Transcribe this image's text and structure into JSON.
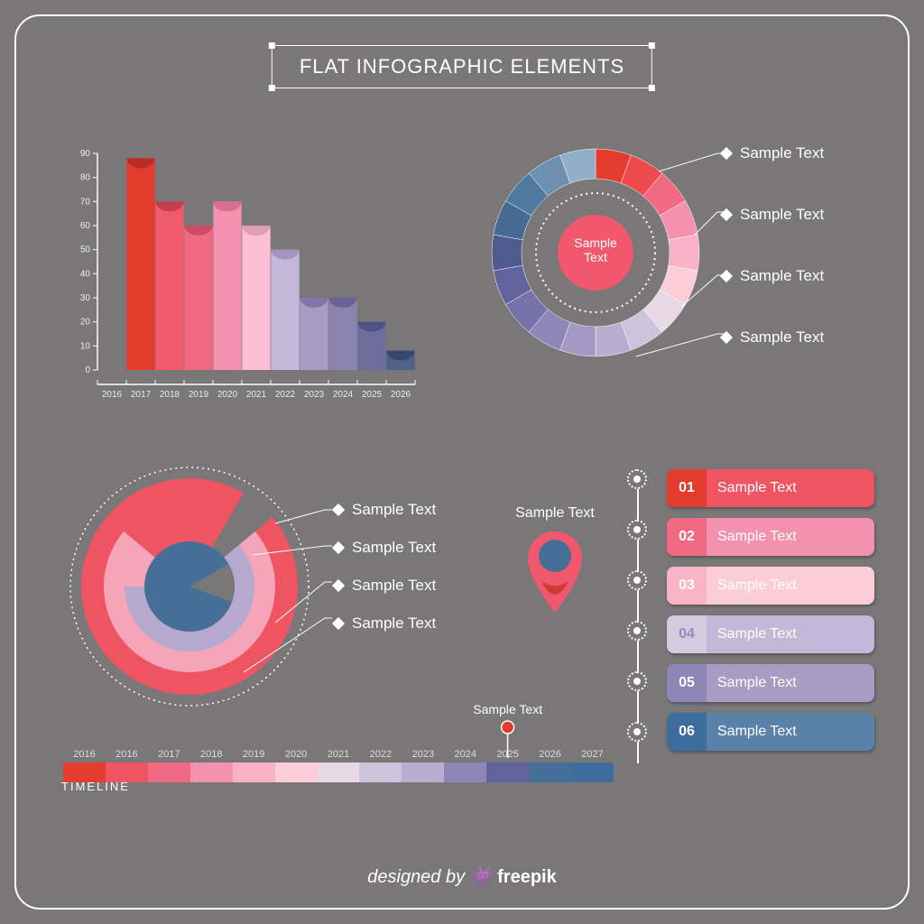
{
  "background_color": "#797777",
  "frame_color": "#ffffff",
  "title": "FLAT INFOGRAPHIC ELEMENTS",
  "title_fontsize": 22,
  "bar_chart": {
    "type": "bar",
    "x_labels": [
      "2016",
      "2017",
      "2018",
      "2019",
      "2020",
      "2021",
      "2022",
      "2023",
      "2024",
      "2025",
      "2026"
    ],
    "y_max": 90,
    "y_tick_step": 10,
    "label_fontsize": 10,
    "tick_color": "#ffffff",
    "text_color": "#eeeeee",
    "bars": [
      {
        "x": "2017",
        "value": 88,
        "fill": "#e33b2d",
        "top": "#b82c24"
      },
      {
        "x": "2018",
        "value": 70,
        "fill": "#ef5b6b",
        "top": "#c53e4f"
      },
      {
        "x": "2019",
        "value": 60,
        "fill": "#f06a84",
        "top": "#cc4c66"
      },
      {
        "x": "2020",
        "value": 70,
        "fill": "#f591b0",
        "top": "#d86f8e"
      },
      {
        "x": "2021",
        "value": 60,
        "fill": "#fac0d3",
        "top": "#e09cb3"
      },
      {
        "x": "2022",
        "value": 50,
        "fill": "#c4b7d7",
        "top": "#a593bf"
      },
      {
        "x": "2023",
        "value": 30,
        "fill": "#a79cc4",
        "top": "#8276a8"
      },
      {
        "x": "2024",
        "value": 30,
        "fill": "#8a83b0",
        "top": "#6a6494"
      },
      {
        "x": "2025",
        "value": 20,
        "fill": "#6d6da0",
        "top": "#505184"
      },
      {
        "x": "2026",
        "value": 8,
        "fill": "#4e6189",
        "top": "#36486d"
      }
    ]
  },
  "donut": {
    "center_label": "Sample\nText",
    "center_fill": "#f1586d",
    "center_text_color": "#ffffff",
    "segment_colors": [
      "#e33b2d",
      "#ed4c4f",
      "#f06a84",
      "#f591b0",
      "#f8b1c6",
      "#fbcdd9",
      "#e7d9e6",
      "#cfc3dc",
      "#b9aed0",
      "#a39ac4",
      "#8d86b7",
      "#7772aa",
      "#62639d",
      "#4f5b8e",
      "#466a94",
      "#4f7aa0",
      "#6d8fb1",
      "#93aec8"
    ],
    "labels": [
      "Sample Text",
      "Sample Text",
      "Sample Text",
      "Sample Text"
    ],
    "leader_color": "#ffffff"
  },
  "radial": {
    "outline_color": "#ffffff",
    "rings": [
      {
        "radius": 120,
        "sweep": 340,
        "fill": "#ef5463"
      },
      {
        "radius": 95,
        "sweep": 260,
        "fill": "#f6a4b8"
      },
      {
        "radius": 72,
        "sweep": 220,
        "fill": "#b7a8cf"
      },
      {
        "radius": 50,
        "sweep": 360,
        "fill": "#466f98",
        "notch": 50
      }
    ],
    "labels": [
      "Sample Text",
      "Sample Text",
      "Sample Text",
      "Sample Text"
    ]
  },
  "pin": {
    "label": "Sample Text",
    "outer": "#f1586d",
    "inner": "#466f98",
    "accent": "#c93a2b"
  },
  "step_list": {
    "items": [
      {
        "num": "01",
        "label": "Sample Text",
        "num_bg": "#e33b2d",
        "num_fg": "#ffffff",
        "bar": "#ef5463"
      },
      {
        "num": "02",
        "label": "Sample Text",
        "num_bg": "#f06a84",
        "num_fg": "#ffffff",
        "bar": "#f591b0"
      },
      {
        "num": "03",
        "label": "Sample Text",
        "num_bg": "#f9b4c7",
        "num_fg": "#ffffff",
        "bar": "#fbcdd9"
      },
      {
        "num": "04",
        "label": "Sample Text",
        "num_bg": "#d6cadf",
        "num_fg": "#9a8cb8",
        "bar": "#c4b7d7"
      },
      {
        "num": "05",
        "label": "Sample Text",
        "num_bg": "#8d86b7",
        "num_fg": "#ffffff",
        "bar": "#a79cc4"
      },
      {
        "num": "06",
        "label": "Sample Text",
        "num_bg": "#3d6d9c",
        "num_fg": "#ffffff",
        "bar": "#5a81a8"
      }
    ]
  },
  "timeline": {
    "title": "TIMELINE",
    "marker_label": "Sample Text",
    "marker_color": "#e33b2d",
    "marker_at_index": 10,
    "years": [
      "2016",
      "2016",
      "2017",
      "2018",
      "2019",
      "2020",
      "2021",
      "2022",
      "2023",
      "2024",
      "2025",
      "2026",
      "2027"
    ],
    "colors": [
      "#e33b2d",
      "#ef5463",
      "#f06a84",
      "#f591b0",
      "#f8b1c6",
      "#fbcdd9",
      "#e7d9e6",
      "#cfc3dc",
      "#b9aed0",
      "#8d86b7",
      "#62639d",
      "#466f98",
      "#3d6d9c"
    ]
  },
  "footer_prefix": "designed by ",
  "footer_brand": "freepik"
}
